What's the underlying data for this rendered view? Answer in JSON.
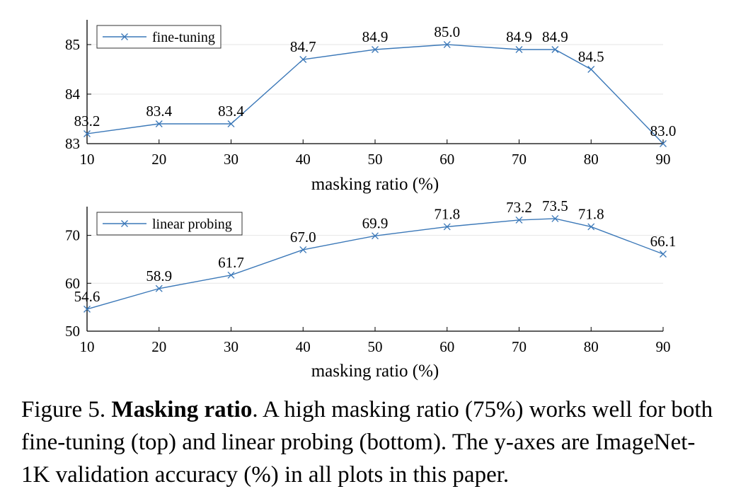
{
  "chart_data": [
    {
      "type": "line",
      "title": "",
      "xlabel": "masking ratio (%)",
      "ylabel": "",
      "x": [
        10,
        20,
        30,
        40,
        50,
        60,
        70,
        75,
        80,
        90
      ],
      "xticks": [
        10,
        20,
        30,
        40,
        50,
        60,
        70,
        80,
        90
      ],
      "xlim": [
        10,
        90
      ],
      "ylim": [
        83,
        85.5
      ],
      "yticks": [
        83,
        84,
        85
      ],
      "grid": true,
      "legend": "top-left",
      "series": [
        {
          "name": "fine-tuning",
          "values": [
            83.2,
            83.4,
            83.4,
            84.7,
            84.9,
            85.0,
            84.9,
            84.9,
            84.5,
            83.0
          ],
          "labels": [
            "83.2",
            "83.4",
            "83.4",
            "84.7",
            "84.9",
            "85.0",
            "84.9",
            "84.9",
            "84.5",
            "83.0"
          ],
          "color": "#3b78b8",
          "marker": "x"
        }
      ]
    },
    {
      "type": "line",
      "title": "",
      "xlabel": "masking ratio (%)",
      "ylabel": "",
      "x": [
        10,
        20,
        30,
        40,
        50,
        60,
        70,
        75,
        80,
        90
      ],
      "xticks": [
        10,
        20,
        30,
        40,
        50,
        60,
        70,
        80,
        90
      ],
      "xlim": [
        10,
        90
      ],
      "ylim": [
        50,
        76
      ],
      "yticks": [
        50,
        60,
        70
      ],
      "grid": true,
      "legend": "top-left",
      "series": [
        {
          "name": "linear probing",
          "values": [
            54.6,
            58.9,
            61.7,
            67.0,
            69.9,
            71.8,
            73.2,
            73.5,
            71.8,
            66.1
          ],
          "labels": [
            "54.6",
            "58.9",
            "61.7",
            "67.0",
            "69.9",
            "71.8",
            "73.2",
            "73.5",
            "71.8",
            "66.1"
          ],
          "color": "#3b78b8",
          "marker": "x"
        }
      ]
    }
  ],
  "caption": {
    "label": "Figure 5.",
    "title": "Masking ratio",
    "text": ". A high masking ratio (75%) works well for both fine-tuning (top) and linear probing (bottom). The y-axes are ImageNet-1K validation accuracy (%) in all plots in this paper."
  }
}
